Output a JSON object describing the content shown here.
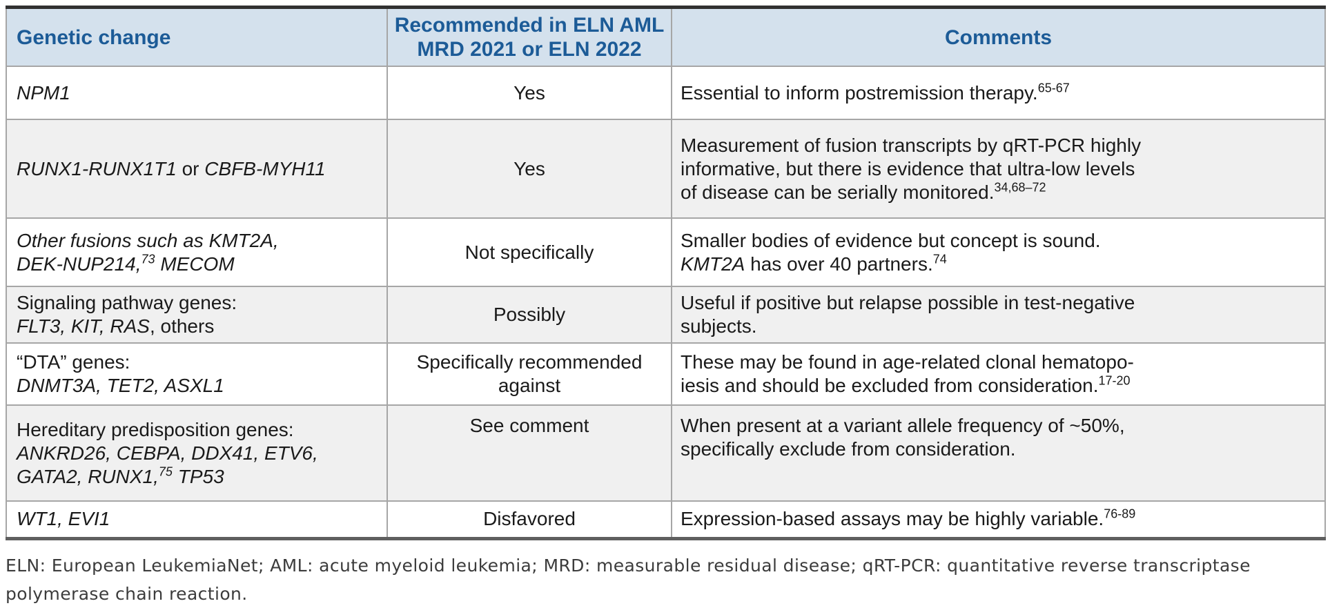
{
  "table": {
    "header_bg": "#d4e1ed",
    "header_text_color": "#1c5b97",
    "shaded_row_bg": "#f0f0f0",
    "headers": {
      "genetic_change": "Genetic change",
      "recommended": "Recommended in ELN AML\nMRD 2021 or ELN 2022",
      "comments": "Comments"
    },
    "rows": [
      {
        "shaded": false,
        "gene": [
          {
            "t": "NPM1",
            "i": true
          }
        ],
        "recommended": "Yes",
        "comment": [
          {
            "t": "Essential to inform postremission therapy."
          },
          {
            "t": "65-67",
            "sup": true
          }
        ]
      },
      {
        "shaded": true,
        "gene": [
          {
            "t": "RUNX1-RUNX1T1",
            "i": true
          },
          {
            "t": " or "
          },
          {
            "t": "CBFB-MYH11",
            "i": true
          }
        ],
        "recommended": "Yes",
        "comment": [
          {
            "t": "Measurement of fusion transcripts by qRT-PCR highly\ninformative, but there is evidence that ultra-low levels\nof disease can be serially monitored."
          },
          {
            "t": "34,68–72",
            "sup": true
          }
        ]
      },
      {
        "shaded": false,
        "gene": [
          {
            "t": "Other fusions such as KMT2A,\nDEK-NUP214,",
            "i": true
          },
          {
            "t": "73",
            "i": true,
            "sup": true
          },
          {
            "t": " MECOM",
            "i": true
          }
        ],
        "recommended": "Not specifically",
        "comment": [
          {
            "t": "Smaller bodies of evidence but concept is sound.\n"
          },
          {
            "t": "KMT2A",
            "i": true
          },
          {
            "t": " has over 40 partners."
          },
          {
            "t": "74",
            "sup": true
          }
        ]
      },
      {
        "shaded": true,
        "gene": [
          {
            "t": "Signaling pathway genes:\n"
          },
          {
            "t": "FLT3, KIT, RAS",
            "i": true
          },
          {
            "t": ", others"
          }
        ],
        "recommended": "Possibly",
        "comment": [
          {
            "t": "Useful if positive but relapse possible in test-negative\nsubjects."
          }
        ]
      },
      {
        "shaded": false,
        "gene": [
          {
            "t": "“DTA” genes:\n"
          },
          {
            "t": "DNMT3A, TET2, ASXL1",
            "i": true
          }
        ],
        "recommended": "Specifically recommended\nagainst",
        "comment": [
          {
            "t": "These may be found in age-related clonal hematopo-\niesis and should be excluded from consideration."
          },
          {
            "t": "17-20",
            "sup": true
          }
        ]
      },
      {
        "shaded": true,
        "gene": [
          {
            "t": "Hereditary predisposition genes:\n"
          },
          {
            "t": "ANKRD26, CEBPA, DDX41, ETV6,\nGATA2, RUNX1,",
            "i": true
          },
          {
            "t": "75",
            "i": true,
            "sup": true
          },
          {
            "t": " TP53",
            "i": true
          }
        ],
        "recommended": "See comment",
        "comment": [
          {
            "t": "When present at a variant allele frequency of ~50%,\nspecifically exclude from consideration."
          }
        ]
      },
      {
        "shaded": false,
        "gene": [
          {
            "t": "WT1, EVI1",
            "i": true
          }
        ],
        "recommended": "Disfavored",
        "comment": [
          {
            "t": "Expression-based assays may be highly variable."
          },
          {
            "t": "76-89",
            "sup": true
          }
        ]
      }
    ]
  },
  "footnote": "ELN: European LeukemiaNet; AML: acute myeloid leukemia; MRD: measurable residual disease; qRT-PCR: quantitative reverse transcriptase\npolymerase chain reaction."
}
